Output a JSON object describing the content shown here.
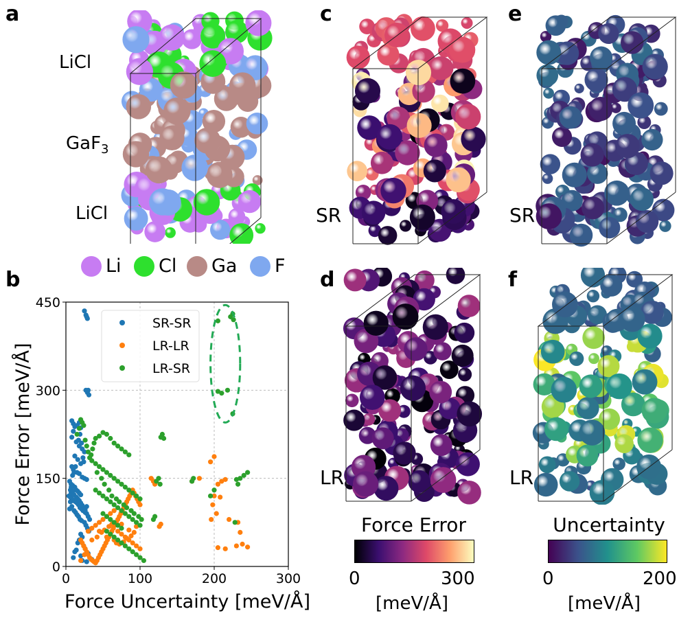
{
  "panel_labels": {
    "a": "a",
    "b": "b",
    "c": "c",
    "d": "d",
    "e": "e",
    "f": "f"
  },
  "panel_a": {
    "labels": {
      "top": "LiCl",
      "middle_base": "GaF",
      "middle_sub": "3",
      "bottom": "LiCl"
    },
    "colors": {
      "Li": "#c77cf2",
      "Cl": "#2ee02e",
      "Ga": "#b88a86",
      "F": "#7fa8ef"
    }
  },
  "species_legend": [
    {
      "label": "Li",
      "color": "#c77cf2"
    },
    {
      "label": "Cl",
      "color": "#2ee02e"
    },
    {
      "label": "Ga",
      "color": "#b88a86"
    },
    {
      "label": "F",
      "color": "#7fa8ef"
    }
  ],
  "panel_c": {
    "label": "SR"
  },
  "panel_d": {
    "label": "LR"
  },
  "panel_e": {
    "label": "SR"
  },
  "panel_f": {
    "label": "LR"
  },
  "colorbar_force": {
    "title": "Force Error",
    "min": "0",
    "max": "300",
    "unit": "[meV/Å]",
    "colors": [
      "#000004",
      "#3b0f70",
      "#8c2981",
      "#de4968",
      "#fe9f6d",
      "#fcfdbf"
    ]
  },
  "colorbar_unc": {
    "title": "Uncertainty",
    "min": "0",
    "max": "200",
    "unit": "[meV/Å]",
    "colors": [
      "#440154",
      "#3b528b",
      "#21918c",
      "#5ec962",
      "#fde725"
    ]
  },
  "chart_data": {
    "type": "scatter",
    "xlabel": "Force Uncertainty [meV/Å]",
    "ylabel": "Force Error [meV/Å]",
    "xlim": [
      0,
      300
    ],
    "ylim": [
      0,
      450
    ],
    "xticks": [
      "0",
      "100",
      "200",
      "300"
    ],
    "yticks": [
      "0",
      "150",
      "300",
      "450"
    ],
    "xtick_values": [
      0,
      100,
      200,
      300
    ],
    "ytick_values": [
      0,
      150,
      300,
      450
    ],
    "grid": true,
    "legend_position": "top-center",
    "annotation": "dashed green ellipse around outlier LR-SR points",
    "annotation_ellipse": {
      "cx": 215,
      "cy": 345,
      "rx": 20,
      "ry": 100
    },
    "series": [
      {
        "name": "SR-SR",
        "color": "#1f77b4",
        "points": [
          [
            25,
            435
          ],
          [
            27,
            428
          ],
          [
            29,
            422
          ],
          [
            28,
            425
          ],
          [
            30,
            300
          ],
          [
            29,
            296
          ],
          [
            31,
            292
          ],
          [
            27,
            300
          ],
          [
            8,
            248
          ],
          [
            10,
            243
          ],
          [
            12,
            238
          ],
          [
            15,
            240
          ],
          [
            18,
            245
          ],
          [
            20,
            236
          ],
          [
            10,
            230
          ],
          [
            8,
            220
          ],
          [
            14,
            212
          ],
          [
            18,
            205
          ],
          [
            22,
            200
          ],
          [
            25,
            195
          ],
          [
            12,
            188
          ],
          [
            16,
            182
          ],
          [
            20,
            175
          ],
          [
            8,
            170
          ],
          [
            10,
            165
          ],
          [
            15,
            160
          ],
          [
            18,
            158
          ],
          [
            22,
            152
          ],
          [
            25,
            150
          ],
          [
            28,
            148
          ],
          [
            5,
            145
          ],
          [
            7,
            140
          ],
          [
            9,
            138
          ],
          [
            12,
            135
          ],
          [
            14,
            130
          ],
          [
            16,
            128
          ],
          [
            18,
            125
          ],
          [
            20,
            122
          ],
          [
            4,
            120
          ],
          [
            6,
            118
          ],
          [
            8,
            115
          ],
          [
            10,
            112
          ],
          [
            13,
            110
          ],
          [
            15,
            108
          ],
          [
            17,
            105
          ],
          [
            19,
            100
          ],
          [
            21,
            98
          ],
          [
            23,
            95
          ],
          [
            26,
            92
          ],
          [
            28,
            90
          ],
          [
            30,
            85
          ],
          [
            32,
            80
          ],
          [
            25,
            75
          ],
          [
            27,
            70
          ],
          [
            29,
            65
          ],
          [
            31,
            60
          ],
          [
            20,
            55
          ],
          [
            22,
            50
          ],
          [
            18,
            45
          ],
          [
            16,
            40
          ],
          [
            24,
            35
          ],
          [
            26,
            30
          ],
          [
            14,
            28
          ],
          [
            12,
            25
          ],
          [
            30,
            22
          ],
          [
            20,
            18
          ],
          [
            35,
            12
          ],
          [
            10,
            15
          ],
          [
            22,
            10
          ],
          [
            28,
            8
          ],
          [
            6,
            130
          ],
          [
            7,
            125
          ],
          [
            9,
            155
          ],
          [
            11,
            160
          ],
          [
            13,
            170
          ],
          [
            17,
            215
          ],
          [
            19,
            225
          ],
          [
            21,
            210
          ],
          [
            23,
            185
          ],
          [
            24,
            178
          ],
          [
            6,
            110
          ],
          [
            8,
            102
          ],
          [
            5,
            98
          ],
          [
            11,
            95
          ],
          [
            13,
            92
          ],
          [
            15,
            88
          ],
          [
            17,
            85
          ],
          [
            19,
            80
          ],
          [
            21,
            78
          ],
          [
            7,
            135
          ],
          [
            9,
            128
          ],
          [
            11,
            122
          ],
          [
            14,
            118
          ],
          [
            16,
            115
          ],
          [
            18,
            112
          ],
          [
            20,
            108
          ],
          [
            22,
            104
          ],
          [
            24,
            100
          ],
          [
            26,
            96
          ],
          [
            28,
            102
          ]
        ]
      },
      {
        "name": "LR-LR",
        "color": "#ff7f0e",
        "points": [
          [
            200,
            187
          ],
          [
            195,
            178
          ],
          [
            210,
            145
          ],
          [
            215,
            148
          ],
          [
            205,
            140
          ],
          [
            200,
            120
          ],
          [
            208,
            118
          ],
          [
            198,
            105
          ],
          [
            203,
            90
          ],
          [
            196,
            80
          ],
          [
            220,
            80
          ],
          [
            232,
            75
          ],
          [
            235,
            58
          ],
          [
            238,
            38
          ],
          [
            230,
            35
          ],
          [
            245,
            33
          ],
          [
            215,
            30
          ],
          [
            205,
            32
          ],
          [
            180,
            150
          ],
          [
            170,
            145
          ],
          [
            128,
            72
          ],
          [
            126,
            68
          ],
          [
            115,
            150
          ],
          [
            118,
            145
          ],
          [
            120,
            140
          ],
          [
            20,
            45
          ],
          [
            22,
            40
          ],
          [
            24,
            35
          ],
          [
            26,
            30
          ],
          [
            28,
            25
          ],
          [
            30,
            20
          ],
          [
            32,
            15
          ],
          [
            34,
            12
          ],
          [
            36,
            10
          ],
          [
            38,
            8
          ],
          [
            40,
            6
          ],
          [
            42,
            10
          ],
          [
            44,
            15
          ],
          [
            46,
            20
          ],
          [
            48,
            25
          ],
          [
            50,
            30
          ],
          [
            52,
            35
          ],
          [
            54,
            40
          ],
          [
            56,
            45
          ],
          [
            58,
            50
          ],
          [
            60,
            55
          ],
          [
            62,
            60
          ],
          [
            64,
            65
          ],
          [
            66,
            70
          ],
          [
            68,
            75
          ],
          [
            70,
            80
          ],
          [
            72,
            85
          ],
          [
            74,
            90
          ],
          [
            76,
            95
          ],
          [
            78,
            100
          ],
          [
            80,
            105
          ],
          [
            82,
            110
          ],
          [
            84,
            115
          ],
          [
            86,
            120
          ],
          [
            88,
            125
          ],
          [
            90,
            130
          ],
          [
            92,
            125
          ],
          [
            94,
            120
          ],
          [
            96,
            115
          ],
          [
            98,
            110
          ],
          [
            100,
            105
          ],
          [
            30,
            60
          ],
          [
            35,
            65
          ],
          [
            40,
            70
          ],
          [
            45,
            75
          ],
          [
            50,
            80
          ],
          [
            55,
            85
          ],
          [
            60,
            90
          ],
          [
            65,
            95
          ],
          [
            70,
            60
          ],
          [
            75,
            55
          ],
          [
            80,
            50
          ],
          [
            85,
            45
          ],
          [
            90,
            40
          ],
          [
            95,
            35
          ],
          [
            100,
            30
          ],
          [
            42,
            50
          ],
          [
            48,
            58
          ],
          [
            52,
            62
          ],
          [
            58,
            68
          ],
          [
            62,
            72
          ],
          [
            68,
            40
          ],
          [
            72,
            38
          ],
          [
            78,
            42
          ],
          [
            82,
            48
          ],
          [
            88,
            52
          ],
          [
            92,
            58
          ],
          [
            20,
            10
          ],
          [
            25,
            20
          ],
          [
            35,
            45
          ],
          [
            45,
            60
          ],
          [
            55,
            50
          ],
          [
            65,
            45
          ],
          [
            75,
            72
          ],
          [
            85,
            62
          ],
          [
            95,
            68
          ]
        ]
      },
      {
        "name": "LR-SR",
        "color": "#2ca02c",
        "points": [
          [
            225,
            430
          ],
          [
            222,
            425
          ],
          [
            226,
            420
          ],
          [
            205,
            418
          ],
          [
            225,
            260
          ],
          [
            218,
            300
          ],
          [
            205,
            298
          ],
          [
            210,
            295
          ],
          [
            245,
            160
          ],
          [
            240,
            155
          ],
          [
            235,
            150
          ],
          [
            230,
            148
          ],
          [
            232,
            140
          ],
          [
            228,
            75
          ],
          [
            200,
            130
          ],
          [
            195,
            120
          ],
          [
            170,
            145
          ],
          [
            172,
            150
          ],
          [
            130,
            225
          ],
          [
            128,
            220
          ],
          [
            132,
            218
          ],
          [
            125,
            150
          ],
          [
            122,
            145
          ],
          [
            127,
            140
          ],
          [
            120,
            85
          ],
          [
            118,
            80
          ],
          [
            20,
            250
          ],
          [
            22,
            245
          ],
          [
            24,
            240
          ],
          [
            18,
            235
          ],
          [
            15,
            225
          ],
          [
            26,
            215
          ],
          [
            28,
            205
          ],
          [
            30,
            195
          ],
          [
            32,
            185
          ],
          [
            34,
            190
          ],
          [
            36,
            200
          ],
          [
            38,
            210
          ],
          [
            40,
            218
          ],
          [
            45,
            222
          ],
          [
            50,
            228
          ],
          [
            55,
            225
          ],
          [
            60,
            218
          ],
          [
            65,
            210
          ],
          [
            70,
            205
          ],
          [
            75,
            200
          ],
          [
            80,
            195
          ],
          [
            85,
            190
          ],
          [
            35,
            180
          ],
          [
            40,
            175
          ],
          [
            45,
            170
          ],
          [
            50,
            165
          ],
          [
            55,
            160
          ],
          [
            60,
            155
          ],
          [
            65,
            150
          ],
          [
            70,
            145
          ],
          [
            75,
            140
          ],
          [
            80,
            135
          ],
          [
            85,
            130
          ],
          [
            90,
            125
          ],
          [
            95,
            120
          ],
          [
            100,
            115
          ],
          [
            42,
            160
          ],
          [
            48,
            150
          ],
          [
            52,
            140
          ],
          [
            58,
            130
          ],
          [
            62,
            120
          ],
          [
            68,
            115
          ],
          [
            72,
            110
          ],
          [
            78,
            105
          ],
          [
            82,
            100
          ],
          [
            88,
            95
          ],
          [
            92,
            90
          ],
          [
            98,
            85
          ],
          [
            102,
            80
          ],
          [
            40,
            130
          ],
          [
            45,
            125
          ],
          [
            50,
            120
          ],
          [
            55,
            115
          ],
          [
            60,
            110
          ],
          [
            65,
            105
          ],
          [
            70,
            100
          ],
          [
            75,
            95
          ],
          [
            80,
            90
          ],
          [
            85,
            85
          ],
          [
            90,
            80
          ],
          [
            95,
            75
          ],
          [
            100,
            70
          ],
          [
            55,
            60
          ],
          [
            60,
            55
          ],
          [
            65,
            50
          ],
          [
            70,
            45
          ],
          [
            75,
            40
          ],
          [
            80,
            35
          ],
          [
            85,
            30
          ],
          [
            90,
            25
          ],
          [
            95,
            20
          ],
          [
            100,
            15
          ],
          [
            105,
            10
          ],
          [
            50,
            90
          ],
          [
            55,
            85
          ],
          [
            60,
            80
          ],
          [
            65,
            75
          ],
          [
            70,
            70
          ],
          [
            75,
            65
          ]
        ]
      }
    ]
  }
}
